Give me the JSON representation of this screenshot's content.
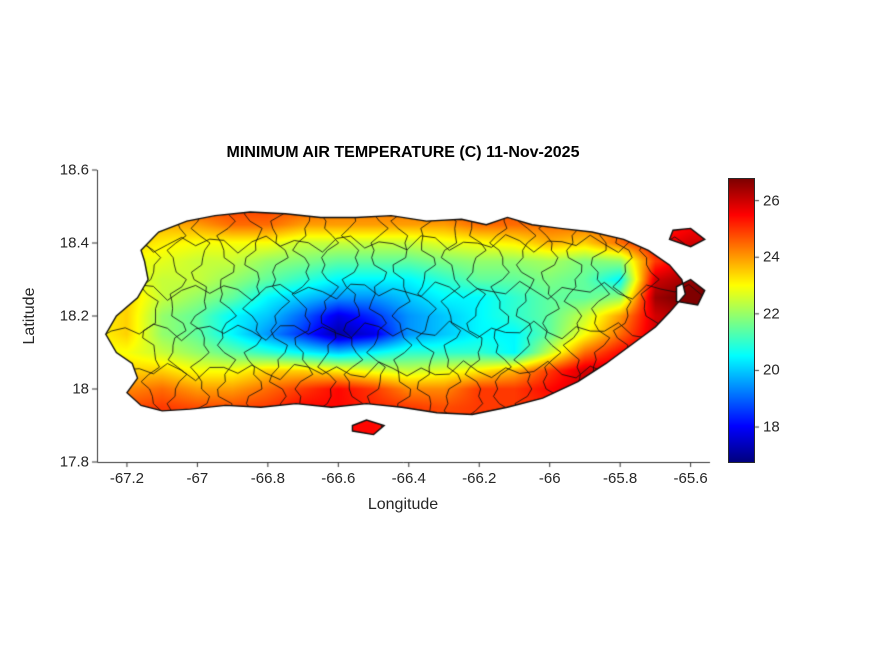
{
  "chart": {
    "title": "MINIMUM AIR TEMPERATURE (C) 11-Nov-2025",
    "xlabel": "Longitude",
    "ylabel": "Latitude"
  },
  "chart_data": {
    "type": "heatmap",
    "title": "MINIMUM AIR TEMPERATURE (C) 11-Nov-2025",
    "xlabel": "Longitude",
    "ylabel": "Latitude",
    "xlim": [
      -67.285,
      -65.545
    ],
    "ylim": [
      17.8,
      18.6
    ],
    "x_ticks": [
      -67.2,
      -67,
      -66.8,
      -66.6,
      -66.4,
      -66.2,
      -66,
      -65.8,
      -65.6
    ],
    "x_tick_labels": [
      "-67.2",
      "-67",
      "-66.8",
      "-66.6",
      "-66.4",
      "-66.2",
      "-66",
      "-65.8",
      "-65.6"
    ],
    "y_ticks": [
      18.6,
      18.4,
      18.2,
      18,
      17.8
    ],
    "y_tick_labels": [
      "18.6",
      "18.4",
      "18.2",
      "18",
      "17.8"
    ],
    "colorbar": {
      "colormap": "jet",
      "range_c": [
        16.8,
        26.8
      ],
      "ticks": [
        18,
        20,
        22,
        24,
        26
      ],
      "tick_labels": [
        "18",
        "20",
        "22",
        "24",
        "26"
      ]
    },
    "grid": {
      "units": "deg C",
      "lon_start": -67.3,
      "lon_step": 0.1,
      "lat_start": 17.9,
      "lat_step": 0.05,
      "values_c": [
        [
          25,
          25,
          25,
          25,
          25,
          25,
          25.5,
          25.5,
          25.5,
          25,
          25,
          25,
          25,
          25,
          25.5,
          25.5,
          25.5,
          25.5,
          25.5
        ],
        [
          24.5,
          24.8,
          25,
          24.8,
          24.8,
          25,
          25.5,
          25.5,
          25.2,
          25,
          24.8,
          25,
          25,
          25.2,
          25.5,
          25.8,
          25.5,
          25.5,
          25.5
        ],
        [
          23.8,
          24.2,
          24.5,
          24,
          24,
          24.5,
          25,
          25.5,
          25,
          24.2,
          24.2,
          25,
          25,
          25.5,
          26,
          26,
          25.8,
          25.5,
          25.5
        ],
        [
          23.2,
          23.5,
          23.5,
          23,
          23,
          23.5,
          23.5,
          23.2,
          22.8,
          22.5,
          22.8,
          23.2,
          23.8,
          25,
          26,
          26,
          25.8,
          25.5,
          25.5
        ],
        [
          23,
          23,
          22.5,
          22,
          21.5,
          21,
          20.5,
          20,
          20.5,
          21,
          21,
          21,
          20.5,
          22.5,
          24.5,
          25.5,
          26,
          25.5,
          25.5
        ],
        [
          23,
          23.5,
          22,
          21.5,
          20.5,
          19.5,
          18.5,
          17.2,
          17.8,
          19.5,
          20,
          20.5,
          20.5,
          21.5,
          23,
          24.5,
          26,
          26,
          25.8
        ],
        [
          23,
          23.5,
          22,
          21.5,
          20.5,
          20,
          19,
          17.8,
          18.5,
          19.5,
          20,
          20.5,
          21,
          21.5,
          22.5,
          24,
          26,
          26.5,
          26.2
        ],
        [
          23,
          23.5,
          22.5,
          22,
          21.5,
          20.5,
          20,
          19.5,
          19.5,
          20,
          20.5,
          20.5,
          21,
          21.5,
          21.5,
          22,
          26.5,
          27,
          26.8
        ],
        [
          23,
          23,
          22.5,
          22.5,
          22,
          21.5,
          21,
          20.5,
          20.5,
          20.5,
          21,
          21.5,
          21.5,
          21.8,
          21.5,
          20.5,
          26,
          26.5,
          26.5
        ],
        [
          23,
          23,
          22.8,
          22.5,
          22.5,
          22,
          21.8,
          21.5,
          21.5,
          21.5,
          21.8,
          22,
          22,
          22.2,
          21.8,
          22,
          25,
          26,
          26
        ],
        [
          23.5,
          23.5,
          23.2,
          23,
          23,
          23,
          22.5,
          22.5,
          22.5,
          22.5,
          22.8,
          23,
          23.2,
          23.8,
          23.5,
          24.5,
          25.5,
          26,
          26
        ],
        [
          24,
          24,
          23.8,
          24,
          24.5,
          24.5,
          24,
          24,
          24,
          24,
          24,
          24.5,
          24.5,
          24.5,
          24.5,
          24.5,
          25,
          25.5,
          25.5
        ],
        [
          24.2,
          24.5,
          24.5,
          25,
          25,
          25,
          24.8,
          24.5,
          24.5,
          24.5,
          24.8,
          25,
          24.8,
          24.8,
          24.8,
          24.8,
          24.8,
          25,
          25
        ],
        [
          24.5,
          25,
          25,
          25,
          25,
          25,
          25,
          24.8,
          24.8,
          24.8,
          24.8,
          25,
          25,
          24.8,
          24.8,
          24.8,
          24.8,
          25,
          25
        ]
      ]
    },
    "island_outline": [
      [
        -67.16,
        18.38
      ],
      [
        -67.11,
        18.43
      ],
      [
        -67.03,
        18.46
      ],
      [
        -66.95,
        18.475
      ],
      [
        -66.85,
        18.485
      ],
      [
        -66.75,
        18.48
      ],
      [
        -66.65,
        18.47
      ],
      [
        -66.55,
        18.47
      ],
      [
        -66.45,
        18.475
      ],
      [
        -66.35,
        18.46
      ],
      [
        -66.25,
        18.465
      ],
      [
        -66.18,
        18.45
      ],
      [
        -66.12,
        18.47
      ],
      [
        -66.05,
        18.45
      ],
      [
        -65.97,
        18.44
      ],
      [
        -65.88,
        18.43
      ],
      [
        -65.79,
        18.41
      ],
      [
        -65.72,
        18.38
      ],
      [
        -65.66,
        18.34
      ],
      [
        -65.625,
        18.3
      ],
      [
        -65.615,
        18.26
      ],
      [
        -65.66,
        18.21
      ],
      [
        -65.7,
        18.17
      ],
      [
        -65.77,
        18.12
      ],
      [
        -65.84,
        18.07
      ],
      [
        -65.92,
        18.02
      ],
      [
        -66.02,
        17.975
      ],
      [
        -66.12,
        17.95
      ],
      [
        -66.22,
        17.93
      ],
      [
        -66.32,
        17.935
      ],
      [
        -66.42,
        17.95
      ],
      [
        -66.52,
        17.96
      ],
      [
        -66.62,
        17.95
      ],
      [
        -66.72,
        17.96
      ],
      [
        -66.82,
        17.95
      ],
      [
        -66.92,
        17.955
      ],
      [
        -67.02,
        17.945
      ],
      [
        -67.1,
        17.94
      ],
      [
        -67.16,
        17.955
      ],
      [
        -67.2,
        17.99
      ],
      [
        -67.17,
        18.03
      ],
      [
        -67.185,
        18.07
      ],
      [
        -67.23,
        18.1
      ],
      [
        -67.26,
        18.15
      ],
      [
        -67.23,
        18.2
      ],
      [
        -67.17,
        18.25
      ],
      [
        -67.14,
        18.3
      ],
      [
        -67.15,
        18.35
      ]
    ],
    "islets": [
      [
        [
          -65.66,
          18.41
        ],
        [
          -65.6,
          18.39
        ],
        [
          -65.56,
          18.41
        ],
        [
          -65.6,
          18.44
        ],
        [
          -65.65,
          18.435
        ]
      ],
      [
        [
          -65.64,
          18.24
        ],
        [
          -65.58,
          18.23
        ],
        [
          -65.56,
          18.27
        ],
        [
          -65.6,
          18.3
        ],
        [
          -65.64,
          18.28
        ]
      ],
      [
        [
          -66.56,
          17.885
        ],
        [
          -66.5,
          17.875
        ],
        [
          -66.47,
          17.9
        ],
        [
          -66.52,
          17.915
        ],
        [
          -66.56,
          17.9
        ]
      ]
    ],
    "boundary_lons": [
      -67.13,
      -67.06,
      -66.99,
      -66.92,
      -66.84,
      -66.77,
      -66.7,
      -66.63,
      -66.56,
      -66.49,
      -66.42,
      -66.35,
      -66.28,
      -66.21,
      -66.14,
      -66.07,
      -66.0,
      -65.93,
      -65.86,
      -65.79,
      -65.72
    ],
    "boundary_lats": [
      18.05,
      18.16,
      18.27,
      18.4
    ]
  }
}
